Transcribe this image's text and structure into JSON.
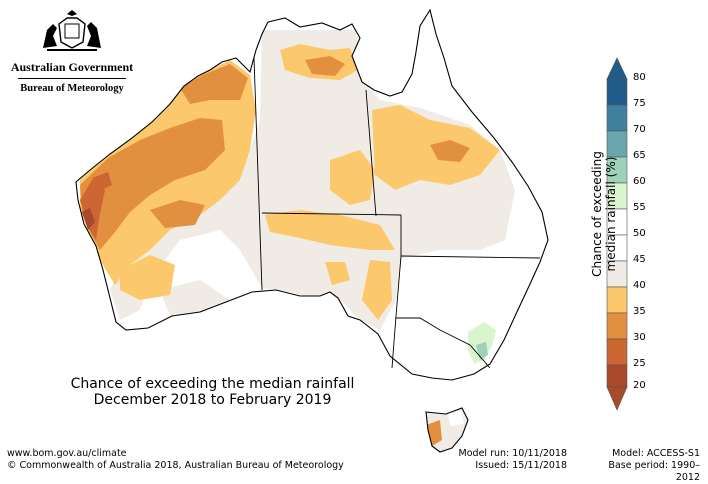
{
  "agency": {
    "government": "Australian Government",
    "bureau": "Bureau of Meteorology"
  },
  "map": {
    "title_line1": "Chance of exceeding the median rainfall",
    "title_line2": "December 2018 to February 2019"
  },
  "legend": {
    "label": "Chance of exceeding median rainfall (%)",
    "ticks": [
      "80",
      "75",
      "70",
      "65",
      "60",
      "55",
      "50",
      "45",
      "40",
      "35",
      "30",
      "25",
      "20"
    ],
    "colors": {
      "75-80": "#1f5c8a",
      "70-75": "#3f7fa0",
      "65-70": "#6aa6ae",
      "60-65": "#9fd0b8",
      "55-60": "#d8f5cd",
      "50-55": "#ffffff",
      "45-50": "#ffffff",
      "40-45": "#f0ebe4",
      "35-40": "#fbc86b",
      "30-35": "#e2903f",
      "25-30": "#cc6633",
      "20-25": "#a94a2a"
    }
  },
  "footer": {
    "website": "www.bom.gov.au/climate",
    "copyright": "© Commonwealth of Australia 2018, Australian Bureau of Meteorology",
    "model_run": "Model run: 10/11/2018",
    "issued": "Issued: 15/11/2018",
    "model": "Model: ACCESS-S1",
    "base_period": "Base period: 1990–2012"
  }
}
